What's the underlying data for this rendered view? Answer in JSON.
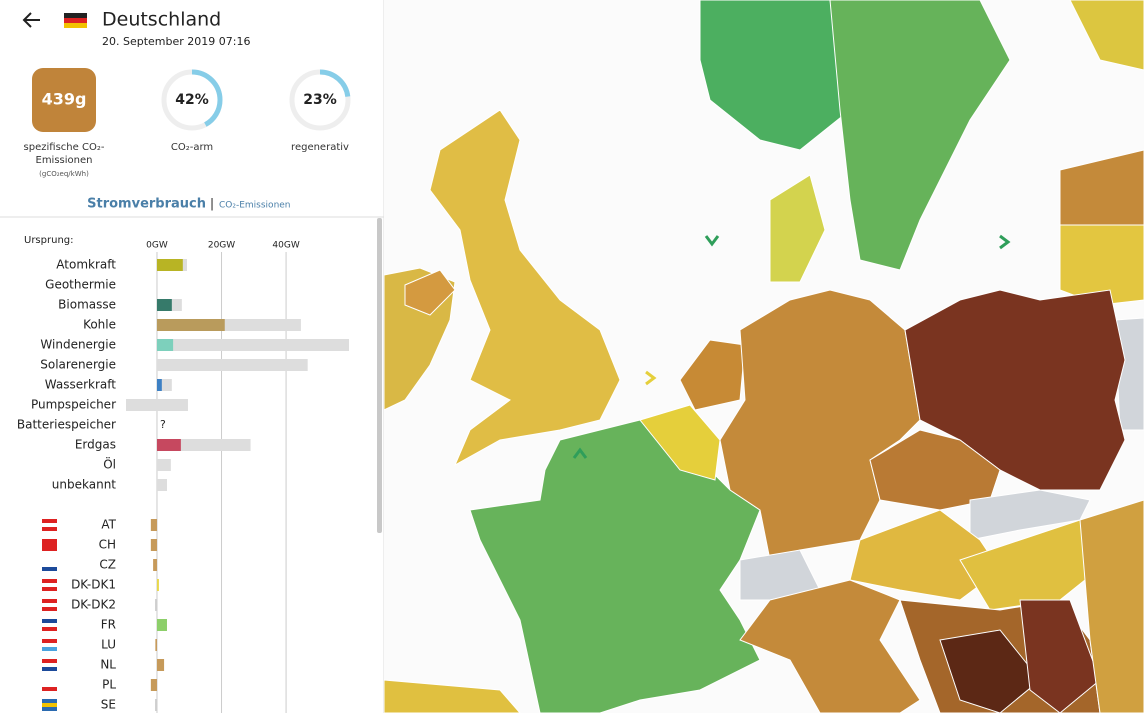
{
  "header": {
    "title": "Deutschland",
    "datetime": "20. September 2019 07:16"
  },
  "kpis": [
    {
      "value": 439,
      "value_label": "439g",
      "label": "spezifische CO₂-Emissionen",
      "unit": "(gCO₂eq/kWh)"
    },
    {
      "value": 42,
      "value_label": "42%",
      "label": "CO₂-arm"
    },
    {
      "value": 23,
      "value_label": "23%",
      "label": "regenerativ"
    }
  ],
  "tabs": {
    "active": "Stromverbrauch",
    "separator": "|",
    "other": "CO₂-Emissionen"
  },
  "chart_data": {
    "type": "bar",
    "title": "Ursprung:",
    "grid": true,
    "xlim": [
      -9.6,
      59.5
    ],
    "xticks": [
      {
        "value": 0,
        "label": "0GW"
      },
      {
        "value": 20,
        "label": "20GW"
      },
      {
        "value": 40,
        "label": "40GW"
      }
    ],
    "categories": [
      "Atomkraft",
      "Geothermie",
      "Biomasse",
      "Kohle",
      "Windenergie",
      "Solarenergie",
      "Wasserkraft",
      "Pumpspeicher",
      "Batteriespeicher",
      "Erdgas",
      "Öl",
      "unbekannt"
    ],
    "values": [
      8.0,
      0,
      4.6,
      21.0,
      5.0,
      0,
      1.5,
      0,
      null,
      7.4,
      0,
      0
    ],
    "value_labels": [
      null,
      null,
      null,
      null,
      null,
      null,
      null,
      null,
      "?",
      null,
      null,
      null
    ],
    "colors": [
      "#b8b424",
      "#c9b46a",
      "#367a6a",
      "#b99b5c",
      "#7dd0bc",
      "#f2c744",
      "#3d80c4",
      "#0b5fa6",
      "#6b4fa0",
      "#c6485f",
      "#8a6a4a",
      "#b0b0b0"
    ],
    "capacity_min": [
      0,
      0,
      0,
      0,
      0,
      0,
      0,
      -9.6,
      null,
      0,
      0,
      0
    ],
    "capacity_max": [
      9.3,
      0,
      7.7,
      44.6,
      59.5,
      46.7,
      4.6,
      9.6,
      null,
      29.0,
      4.3,
      3.1
    ],
    "exchange_categories": [
      "AT",
      "CH",
      "CZ",
      "DK-DK1",
      "DK-DK2",
      "FR",
      "LU",
      "NL",
      "PL",
      "SE"
    ],
    "exchange_values": [
      -1.9,
      -1.9,
      -1.2,
      0.6,
      -0.6,
      3.1,
      -0.5,
      2.2,
      -1.9,
      -0.6
    ],
    "exchange_colors": [
      "#c69a5a",
      "#c69a5a",
      "#c69a5a",
      "#e8d84a",
      "#cfcfcf",
      "#8dcf6a",
      "#c69a5a",
      "#c69a5a",
      "#c69a5a",
      "#cfcfcf"
    ]
  }
}
